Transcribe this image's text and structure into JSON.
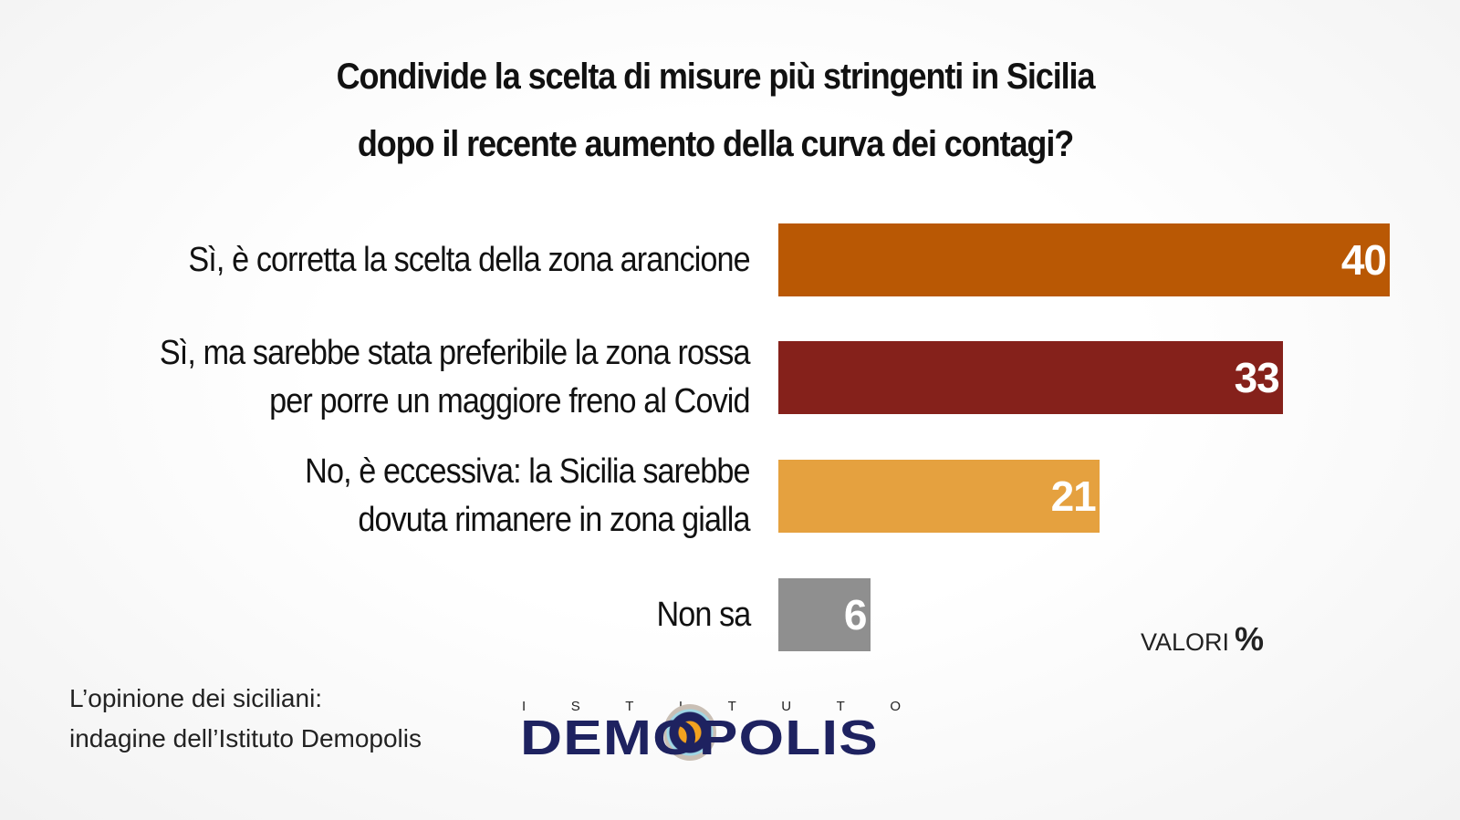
{
  "chart_data": {
    "type": "bar",
    "orientation": "horizontal",
    "title": [
      "Condivide la scelta di misure più stringenti in Sicilia",
      "dopo il recente aumento della curva dei contagi?"
    ],
    "categories": [
      [
        "Sì, è corretta la scelta della zona arancione"
      ],
      [
        "Sì, ma sarebbe stata preferibile la zona rossa",
        "per porre un maggiore freno al Covid"
      ],
      [
        "No, è eccessiva: la Sicilia sarebbe",
        "dovuta rimanere in zona gialla"
      ],
      [
        "Non sa"
      ]
    ],
    "values": [
      40,
      33,
      21,
      6
    ],
    "colors": [
      "#b95804",
      "#85211b",
      "#e5a13f",
      "#8f8f8f"
    ],
    "unit_label": "VALORI",
    "unit_symbol": "%",
    "xlim": [
      0,
      40
    ]
  },
  "footer": {
    "line1": "L’opinione dei siciliani:",
    "line2": "indagine dell’Istituto Demopolis"
  },
  "logo": {
    "top": "ISTITUTO",
    "main": "DEMOPOLIS"
  }
}
